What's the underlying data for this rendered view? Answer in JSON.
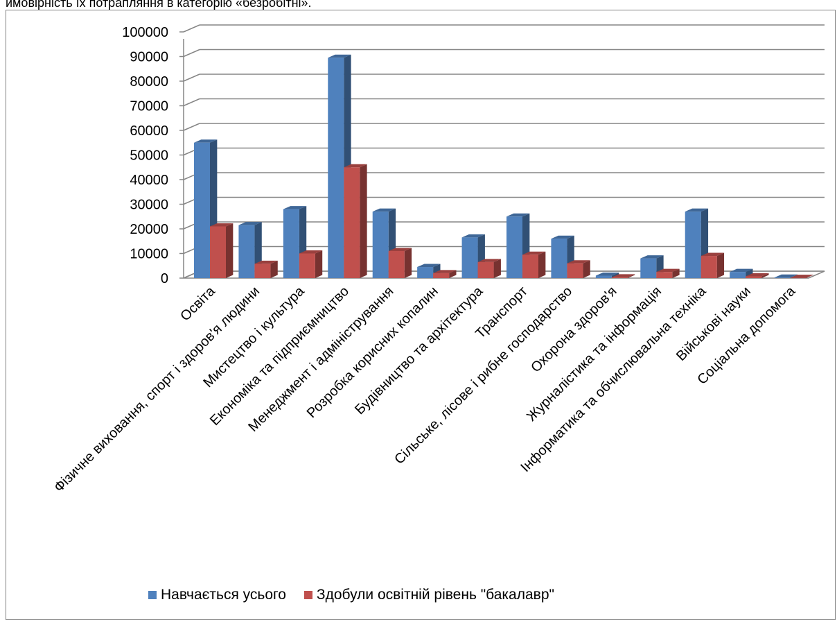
{
  "caption_line": "ймовірність їх потрапляння в категорію «безробітні».",
  "colors": {
    "series1": "#4f81bd",
    "series2": "#c0504d",
    "grid": "#868686",
    "text": "#000000"
  },
  "chart_data": {
    "type": "bar",
    "title": "",
    "xlabel": "",
    "ylabel": "",
    "ylim": [
      0,
      100000
    ],
    "yticks": [
      "0",
      "10000",
      "20000",
      "30000",
      "40000",
      "50000",
      "60000",
      "70000",
      "80000",
      "90000",
      "100000"
    ],
    "grid": true,
    "legend_position": "bottom",
    "categories": [
      "Освіта",
      "Фізичне виховання, спорт і здоров'я людини",
      "Мистецтво і культура",
      "Економіка та підприємництво",
      "Менеджмент і адміністрування",
      "Розробка корисних копалин",
      "Будівництво та архітектура",
      "Транспорт",
      "Сільське, лісове і рибне господарство",
      "Охорона здоров'я",
      "Журналістика та інформація",
      "Інформатика та обчислювальна техніка",
      "Військові науки",
      "Соціальна допомога"
    ],
    "series": [
      {
        "name": "Навчається усього",
        "values": [
          55000,
          21500,
          28000,
          89500,
          27000,
          4500,
          16500,
          25000,
          16000,
          1000,
          8000,
          27000,
          2500,
          200
        ]
      },
      {
        "name": "Здобули освітній рівень \"бакалавр\"",
        "values": [
          21000,
          5800,
          10000,
          45000,
          11000,
          2000,
          6500,
          9500,
          6000,
          300,
          2500,
          9000,
          700,
          100
        ]
      }
    ]
  }
}
